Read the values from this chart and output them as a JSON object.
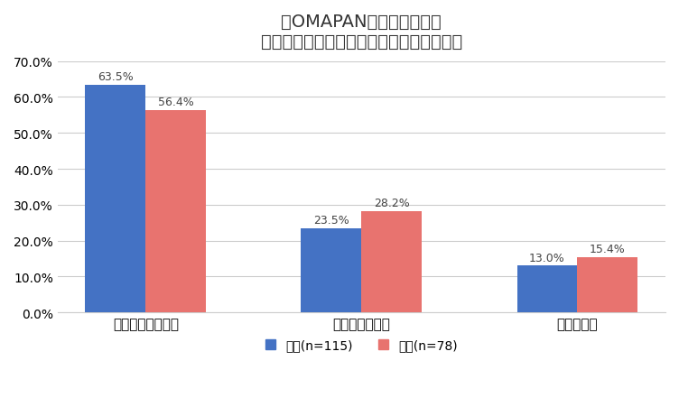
{
  "title_line1": "「OMAPAN」を穿いたら、",
  "title_line2": "外出時の心境に変化はあると思いますか？",
  "categories": [
    "とても安心できる",
    "やや安心できる",
    "変わらない"
  ],
  "male_values": [
    63.5,
    23.5,
    13.0
  ],
  "female_values": [
    56.4,
    28.2,
    15.4
  ],
  "male_color": "#4472C4",
  "female_color": "#E8736F",
  "male_label": "男性(n=115)",
  "female_label": "女性(n=78)",
  "ylim": [
    0,
    70
  ],
  "yticks": [
    0,
    10,
    20,
    30,
    40,
    50,
    60,
    70
  ],
  "ytick_labels": [
    "0.0%",
    "10.0%",
    "20.0%",
    "30.0%",
    "40.0%",
    "50.0%",
    "60.0%",
    "70.0%"
  ],
  "bar_width": 0.28,
  "background_color": "#ffffff",
  "title_fontsize": 14,
  "tick_fontsize": 10,
  "legend_fontsize": 10,
  "annotation_fontsize": 9
}
